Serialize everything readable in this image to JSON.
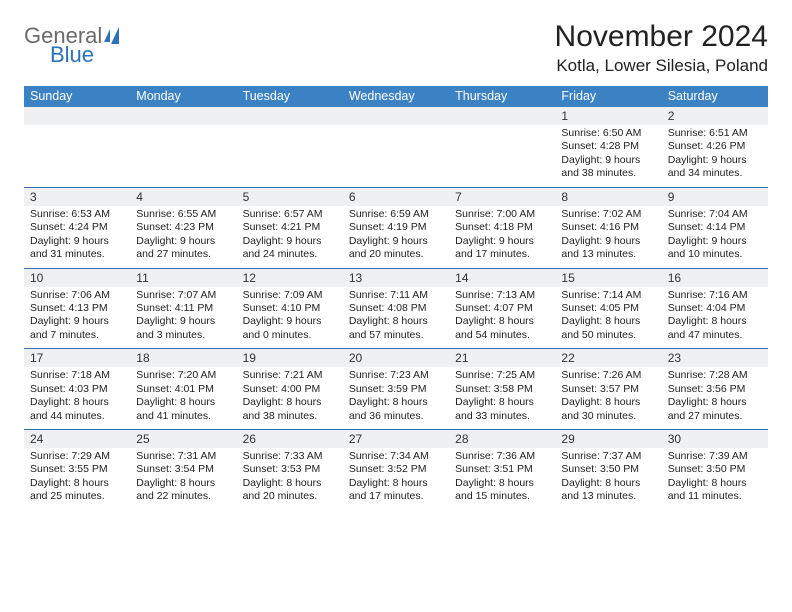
{
  "brand": {
    "general": "General",
    "blue": "Blue"
  },
  "title": "November 2024",
  "location": "Kotla, Lower Silesia, Poland",
  "dayNames": [
    "Sunday",
    "Monday",
    "Tuesday",
    "Wednesday",
    "Thursday",
    "Friday",
    "Saturday"
  ],
  "colors": {
    "header_bg": "#3b82c4",
    "header_text": "#ffffff",
    "daynum_bg": "#eef0f2",
    "divider": "#2d72b8",
    "text": "#222222"
  },
  "weeks": [
    [
      {
        "n": "",
        "sr": "",
        "ss": "",
        "dl": ""
      },
      {
        "n": "",
        "sr": "",
        "ss": "",
        "dl": ""
      },
      {
        "n": "",
        "sr": "",
        "ss": "",
        "dl": ""
      },
      {
        "n": "",
        "sr": "",
        "ss": "",
        "dl": ""
      },
      {
        "n": "",
        "sr": "",
        "ss": "",
        "dl": ""
      },
      {
        "n": "1",
        "sr": "Sunrise: 6:50 AM",
        "ss": "Sunset: 4:28 PM",
        "dl": "Daylight: 9 hours and 38 minutes."
      },
      {
        "n": "2",
        "sr": "Sunrise: 6:51 AM",
        "ss": "Sunset: 4:26 PM",
        "dl": "Daylight: 9 hours and 34 minutes."
      }
    ],
    [
      {
        "n": "3",
        "sr": "Sunrise: 6:53 AM",
        "ss": "Sunset: 4:24 PM",
        "dl": "Daylight: 9 hours and 31 minutes."
      },
      {
        "n": "4",
        "sr": "Sunrise: 6:55 AM",
        "ss": "Sunset: 4:23 PM",
        "dl": "Daylight: 9 hours and 27 minutes."
      },
      {
        "n": "5",
        "sr": "Sunrise: 6:57 AM",
        "ss": "Sunset: 4:21 PM",
        "dl": "Daylight: 9 hours and 24 minutes."
      },
      {
        "n": "6",
        "sr": "Sunrise: 6:59 AM",
        "ss": "Sunset: 4:19 PM",
        "dl": "Daylight: 9 hours and 20 minutes."
      },
      {
        "n": "7",
        "sr": "Sunrise: 7:00 AM",
        "ss": "Sunset: 4:18 PM",
        "dl": "Daylight: 9 hours and 17 minutes."
      },
      {
        "n": "8",
        "sr": "Sunrise: 7:02 AM",
        "ss": "Sunset: 4:16 PM",
        "dl": "Daylight: 9 hours and 13 minutes."
      },
      {
        "n": "9",
        "sr": "Sunrise: 7:04 AM",
        "ss": "Sunset: 4:14 PM",
        "dl": "Daylight: 9 hours and 10 minutes."
      }
    ],
    [
      {
        "n": "10",
        "sr": "Sunrise: 7:06 AM",
        "ss": "Sunset: 4:13 PM",
        "dl": "Daylight: 9 hours and 7 minutes."
      },
      {
        "n": "11",
        "sr": "Sunrise: 7:07 AM",
        "ss": "Sunset: 4:11 PM",
        "dl": "Daylight: 9 hours and 3 minutes."
      },
      {
        "n": "12",
        "sr": "Sunrise: 7:09 AM",
        "ss": "Sunset: 4:10 PM",
        "dl": "Daylight: 9 hours and 0 minutes."
      },
      {
        "n": "13",
        "sr": "Sunrise: 7:11 AM",
        "ss": "Sunset: 4:08 PM",
        "dl": "Daylight: 8 hours and 57 minutes."
      },
      {
        "n": "14",
        "sr": "Sunrise: 7:13 AM",
        "ss": "Sunset: 4:07 PM",
        "dl": "Daylight: 8 hours and 54 minutes."
      },
      {
        "n": "15",
        "sr": "Sunrise: 7:14 AM",
        "ss": "Sunset: 4:05 PM",
        "dl": "Daylight: 8 hours and 50 minutes."
      },
      {
        "n": "16",
        "sr": "Sunrise: 7:16 AM",
        "ss": "Sunset: 4:04 PM",
        "dl": "Daylight: 8 hours and 47 minutes."
      }
    ],
    [
      {
        "n": "17",
        "sr": "Sunrise: 7:18 AM",
        "ss": "Sunset: 4:03 PM",
        "dl": "Daylight: 8 hours and 44 minutes."
      },
      {
        "n": "18",
        "sr": "Sunrise: 7:20 AM",
        "ss": "Sunset: 4:01 PM",
        "dl": "Daylight: 8 hours and 41 minutes."
      },
      {
        "n": "19",
        "sr": "Sunrise: 7:21 AM",
        "ss": "Sunset: 4:00 PM",
        "dl": "Daylight: 8 hours and 38 minutes."
      },
      {
        "n": "20",
        "sr": "Sunrise: 7:23 AM",
        "ss": "Sunset: 3:59 PM",
        "dl": "Daylight: 8 hours and 36 minutes."
      },
      {
        "n": "21",
        "sr": "Sunrise: 7:25 AM",
        "ss": "Sunset: 3:58 PM",
        "dl": "Daylight: 8 hours and 33 minutes."
      },
      {
        "n": "22",
        "sr": "Sunrise: 7:26 AM",
        "ss": "Sunset: 3:57 PM",
        "dl": "Daylight: 8 hours and 30 minutes."
      },
      {
        "n": "23",
        "sr": "Sunrise: 7:28 AM",
        "ss": "Sunset: 3:56 PM",
        "dl": "Daylight: 8 hours and 27 minutes."
      }
    ],
    [
      {
        "n": "24",
        "sr": "Sunrise: 7:29 AM",
        "ss": "Sunset: 3:55 PM",
        "dl": "Daylight: 8 hours and 25 minutes."
      },
      {
        "n": "25",
        "sr": "Sunrise: 7:31 AM",
        "ss": "Sunset: 3:54 PM",
        "dl": "Daylight: 8 hours and 22 minutes."
      },
      {
        "n": "26",
        "sr": "Sunrise: 7:33 AM",
        "ss": "Sunset: 3:53 PM",
        "dl": "Daylight: 8 hours and 20 minutes."
      },
      {
        "n": "27",
        "sr": "Sunrise: 7:34 AM",
        "ss": "Sunset: 3:52 PM",
        "dl": "Daylight: 8 hours and 17 minutes."
      },
      {
        "n": "28",
        "sr": "Sunrise: 7:36 AM",
        "ss": "Sunset: 3:51 PM",
        "dl": "Daylight: 8 hours and 15 minutes."
      },
      {
        "n": "29",
        "sr": "Sunrise: 7:37 AM",
        "ss": "Sunset: 3:50 PM",
        "dl": "Daylight: 8 hours and 13 minutes."
      },
      {
        "n": "30",
        "sr": "Sunrise: 7:39 AM",
        "ss": "Sunset: 3:50 PM",
        "dl": "Daylight: 8 hours and 11 minutes."
      }
    ]
  ]
}
